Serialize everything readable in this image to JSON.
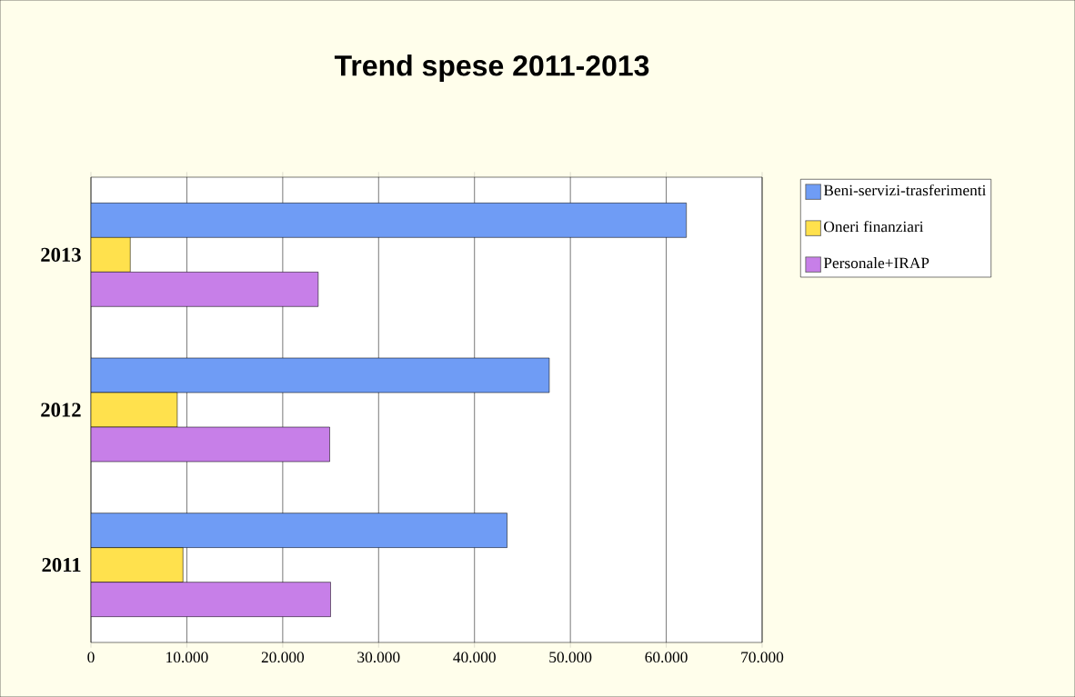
{
  "chart_data": {
    "type": "bar",
    "orientation": "horizontal",
    "title": "Trend spese 2011-2013",
    "categories": [
      "2013",
      "2012",
      "2011"
    ],
    "series": [
      {
        "name": "Beni-servizi-trasferimenti",
        "color": "#6f9cf5",
        "values": [
          62100,
          47800,
          43400
        ]
      },
      {
        "name": "Oneri finanziari",
        "color": "#ffe14d",
        "values": [
          4100,
          9000,
          9600
        ]
      },
      {
        "name": "Personale+IRAP",
        "color": "#c77fe8",
        "values": [
          23700,
          24900,
          25000
        ]
      }
    ],
    "xlim": [
      0,
      70000
    ],
    "xticks": [
      0,
      {
        "value": 10000,
        "label": "10.000"
      },
      {
        "value": 20000,
        "label": "20.000"
      },
      {
        "value": 30000,
        "label": "30.000"
      },
      {
        "value": 40000,
        "label": "40.000"
      },
      {
        "value": 50000,
        "label": "50.000"
      },
      {
        "value": 60000,
        "label": "60.000"
      },
      {
        "value": 70000,
        "label": "70.000"
      }
    ],
    "grid": "x",
    "legend": "right"
  }
}
